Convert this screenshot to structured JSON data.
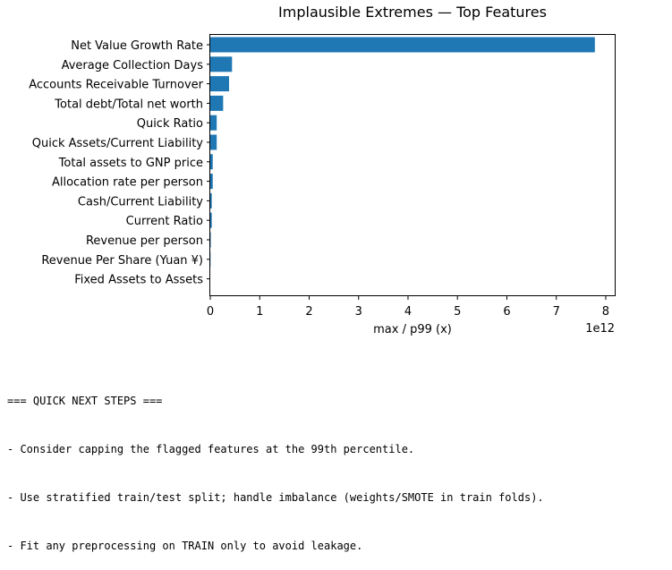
{
  "chart_data": {
    "type": "bar",
    "orientation": "horizontal",
    "title": "Implausible Extremes — Top Features",
    "xlabel": "max / p99 (x)",
    "ylabel": "",
    "x_scale_label": "1e12",
    "xlim": [
      0,
      8.2
    ],
    "xticks": [
      "0",
      "1",
      "2",
      "3",
      "4",
      "5",
      "6",
      "7",
      "8"
    ],
    "categories": [
      "Net Value Growth Rate",
      "Average Collection Days",
      "Accounts Receivable Turnover",
      "Total debt/Total net worth",
      "Quick Ratio",
      "Quick Assets/Current Liability",
      "Total assets to GNP price",
      "Allocation rate per person",
      "Cash/Current Liability",
      "Current Ratio",
      "Revenue per person",
      "Revenue Per Share (Yuan ¥)",
      "Fixed Assets to Assets"
    ],
    "values": [
      7.78,
      0.44,
      0.38,
      0.26,
      0.13,
      0.13,
      0.05,
      0.05,
      0.03,
      0.03,
      0.01,
      0.005,
      0.0
    ],
    "bar_color": "#1f77b4",
    "grid": false
  },
  "notes": {
    "lines": [
      "=== QUICK NEXT STEPS ===",
      "- Consider capping the flagged features at the 99th percentile.",
      "- Use stratified train/test split; handle imbalance (weights/SMOTE in train folds).",
      "- Fit any preprocessing on TRAIN only to avoid leakage."
    ]
  }
}
